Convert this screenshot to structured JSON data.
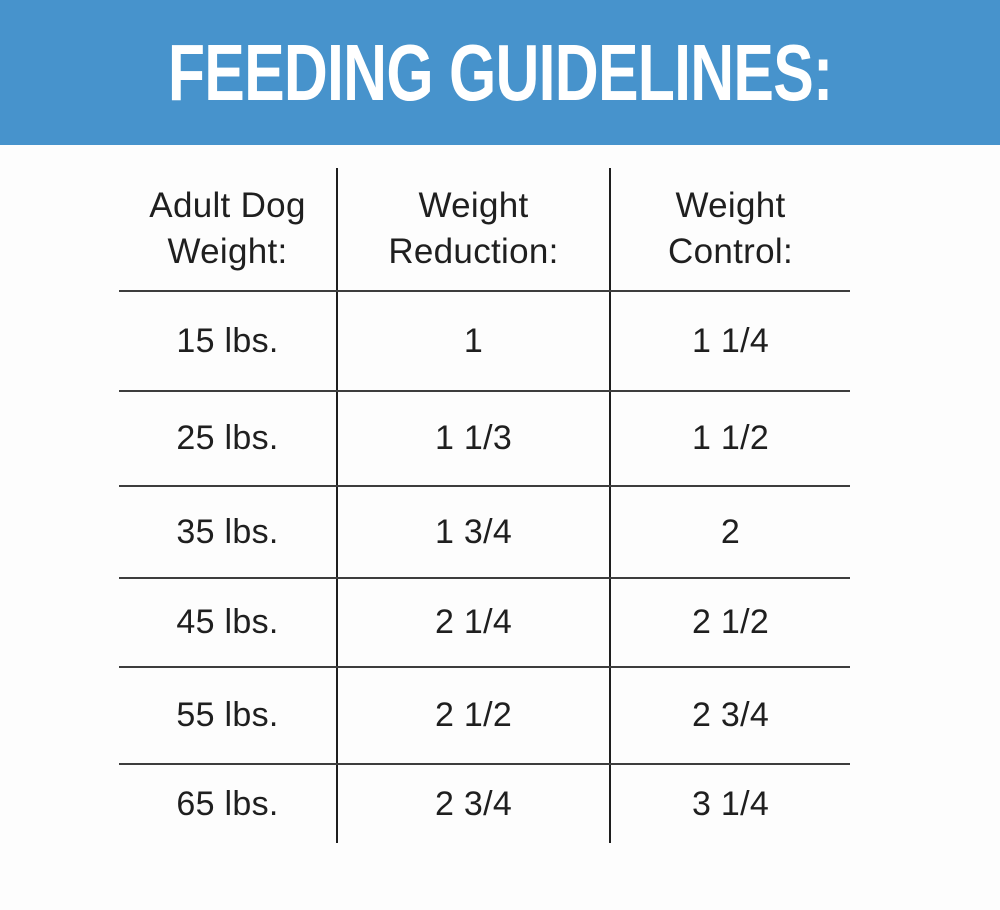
{
  "banner": {
    "title": "FEEDING GUIDELINES:",
    "bg_color": "#4793cc",
    "text_color": "#ffffff"
  },
  "colors": {
    "horizontal_rule": "#3d3d3d",
    "vertical_rule": "#1e1e1e",
    "body_text": "#1f1f1f",
    "page_background": "#fdfdfd"
  },
  "table": {
    "columns": [
      "Adult Dog Weight:",
      "Weight Reduction:",
      "Weight Control:"
    ],
    "header_display": {
      "col1": "Adult Dog\nWeight:",
      "col2": "Weight\nReduction:",
      "col3": "Weight\nControl:"
    },
    "rows": [
      {
        "weight": "15 lbs.",
        "reduction": "1",
        "control": "1 1/4"
      },
      {
        "weight": "25 lbs.",
        "reduction": "1 1/3",
        "control": "1 1/2"
      },
      {
        "weight": "35 lbs.",
        "reduction": "1 3/4",
        "control": "2"
      },
      {
        "weight": "45 lbs.",
        "reduction": "2 1/4",
        "control": "2 1/2"
      },
      {
        "weight": "55 lbs.",
        "reduction": "2 1/2",
        "control": "2 3/4"
      },
      {
        "weight": "65 lbs.",
        "reduction": "2 3/4",
        "control": "3 1/4"
      }
    ]
  }
}
